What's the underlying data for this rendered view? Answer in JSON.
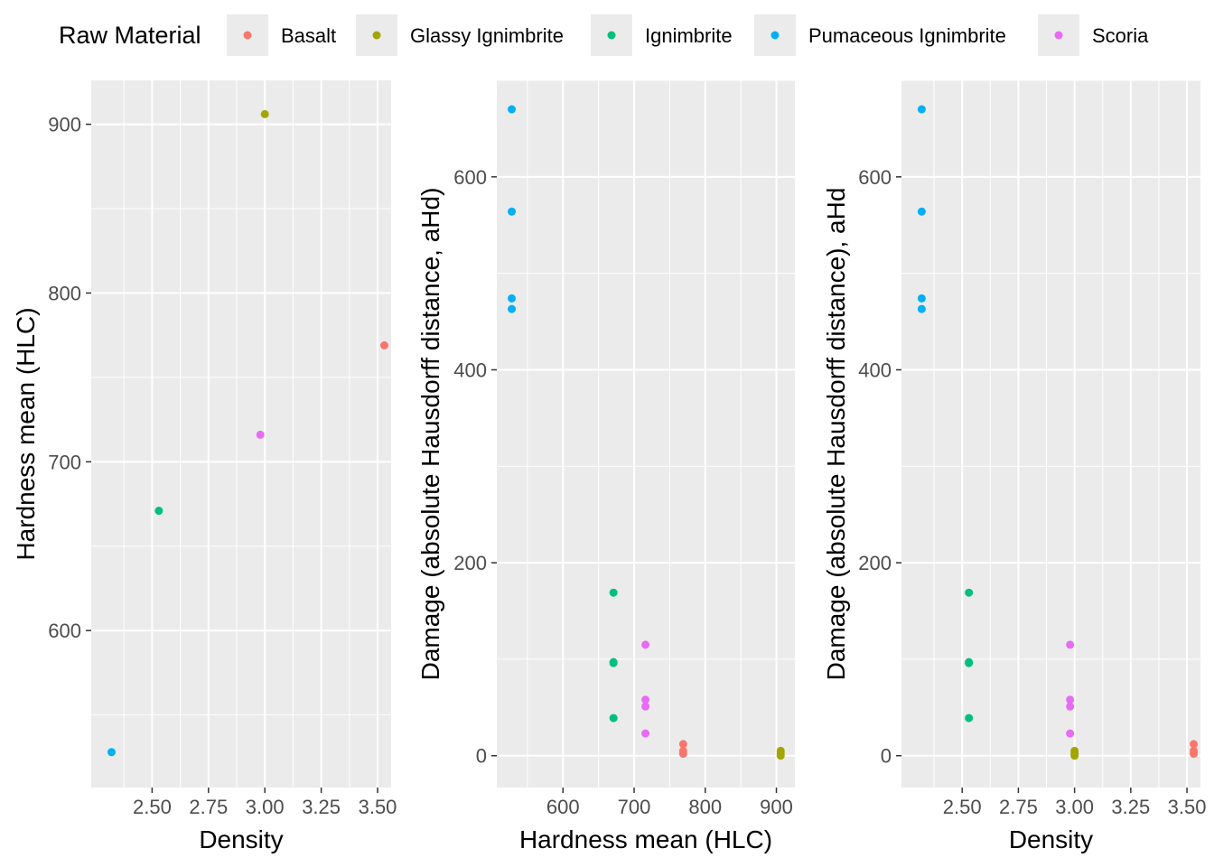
{
  "legend": {
    "title": "Raw Material",
    "items": [
      {
        "label": "Basalt",
        "color": "#F8766D"
      },
      {
        "label": "Glassy Ignimbrite",
        "color": "#A3A500"
      },
      {
        "label": "Ignimbrite",
        "color": "#00BF7D"
      },
      {
        "label": "Pumaceous Ignimbrite",
        "color": "#00B0F6"
      },
      {
        "label": "Scoria",
        "color": "#E76BF3"
      }
    ]
  },
  "chart_data": [
    {
      "type": "scatter",
      "xlabel": "Density",
      "ylabel": "Hardness mean (HLC)",
      "xlim": [
        2.23,
        3.56
      ],
      "ylim": [
        507,
        926
      ],
      "xticks": [
        2.5,
        2.75,
        3.0,
        3.25,
        3.5
      ],
      "xtick_labels": [
        "2.50",
        "2.75",
        "3.00",
        "3.25",
        "3.50"
      ],
      "yticks": [
        600,
        700,
        800,
        900
      ],
      "ytick_labels": [
        "600",
        "700",
        "800",
        "900"
      ],
      "grid": true,
      "series": [
        {
          "name": "Basalt",
          "points": [
            [
              3.53,
              769
            ]
          ]
        },
        {
          "name": "Glassy Ignimbrite",
          "points": [
            [
              3.0,
              906
            ]
          ]
        },
        {
          "name": "Ignimbrite",
          "points": [
            [
              2.53,
              671
            ]
          ]
        },
        {
          "name": "Pumaceous Ignimbrite",
          "points": [
            [
              2.32,
              528
            ]
          ]
        },
        {
          "name": "Scoria",
          "points": [
            [
              2.98,
              716
            ]
          ]
        }
      ]
    },
    {
      "type": "scatter",
      "xlabel": "Hardness mean (HLC)",
      "ylabel": "Damage (absolute Hausdorff distance, aHd)",
      "xlim": [
        507,
        926
      ],
      "ylim": [
        -33,
        700
      ],
      "xticks": [
        600,
        700,
        800,
        900
      ],
      "xtick_labels": [
        "600",
        "700",
        "800",
        "900"
      ],
      "yticks": [
        0,
        200,
        400,
        600
      ],
      "ytick_labels": [
        "0",
        "200",
        "400",
        "600"
      ],
      "grid": true,
      "series": [
        {
          "name": "Basalt",
          "points": [
            [
              769,
              12
            ],
            [
              769,
              5
            ],
            [
              769,
              2
            ]
          ]
        },
        {
          "name": "Glassy Ignimbrite",
          "points": [
            [
              906,
              5
            ],
            [
              906,
              2
            ],
            [
              906,
              0
            ]
          ]
        },
        {
          "name": "Ignimbrite",
          "points": [
            [
              671,
              169
            ],
            [
              671,
              97
            ],
            [
              671,
              96
            ],
            [
              671,
              39
            ]
          ]
        },
        {
          "name": "Pumaceous Ignimbrite",
          "points": [
            [
              528,
              670
            ],
            [
              528,
              564
            ],
            [
              528,
              474
            ],
            [
              528,
              463
            ]
          ]
        },
        {
          "name": "Scoria",
          "points": [
            [
              716,
              115
            ],
            [
              716,
              58
            ],
            [
              716,
              51
            ],
            [
              716,
              23
            ]
          ]
        }
      ]
    },
    {
      "type": "scatter",
      "xlabel": "Density",
      "ylabel": "Damage (absolute Hausdorff distance), aHd",
      "xlim": [
        2.23,
        3.56
      ],
      "ylim": [
        -33,
        700
      ],
      "xticks": [
        2.5,
        2.75,
        3.0,
        3.25,
        3.5
      ],
      "xtick_labels": [
        "2.50",
        "2.75",
        "3.00",
        "3.25",
        "3.50"
      ],
      "yticks": [
        0,
        200,
        400,
        600
      ],
      "ytick_labels": [
        "0",
        "200",
        "400",
        "600"
      ],
      "grid": true,
      "series": [
        {
          "name": "Basalt",
          "points": [
            [
              3.53,
              12
            ],
            [
              3.53,
              5
            ],
            [
              3.53,
              2
            ]
          ]
        },
        {
          "name": "Glassy Ignimbrite",
          "points": [
            [
              3.0,
              5
            ],
            [
              3.0,
              2
            ],
            [
              3.0,
              0
            ]
          ]
        },
        {
          "name": "Ignimbrite",
          "points": [
            [
              2.53,
              169
            ],
            [
              2.53,
              97
            ],
            [
              2.53,
              96
            ],
            [
              2.53,
              39
            ]
          ]
        },
        {
          "name": "Pumaceous Ignimbrite",
          "points": [
            [
              2.32,
              670
            ],
            [
              2.32,
              564
            ],
            [
              2.32,
              474
            ],
            [
              2.32,
              463
            ]
          ]
        },
        {
          "name": "Scoria",
          "points": [
            [
              2.98,
              115
            ],
            [
              2.98,
              58
            ],
            [
              2.98,
              51
            ],
            [
              2.98,
              23
            ]
          ]
        }
      ]
    }
  ]
}
